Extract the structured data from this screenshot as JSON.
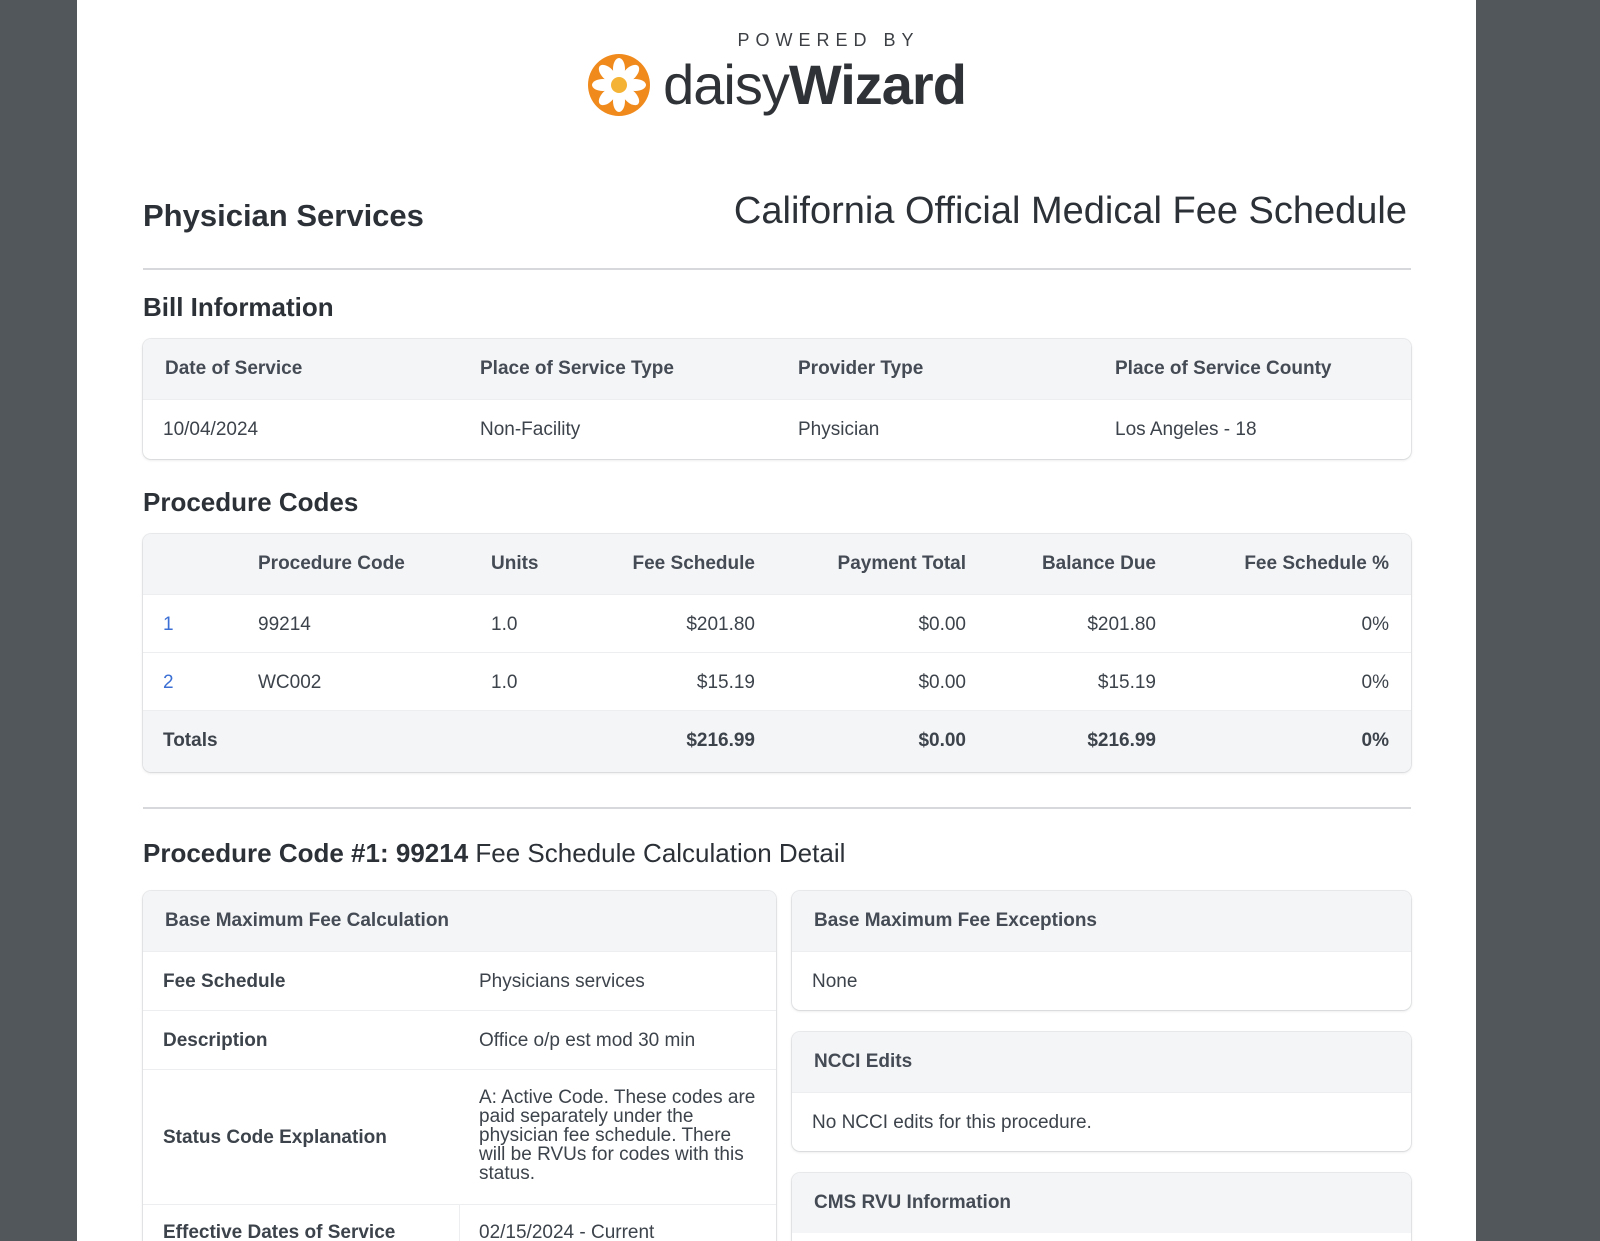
{
  "logo": {
    "powered_by": "POWERED BY",
    "brand_light": "daisy",
    "brand_bold": "Wizard",
    "icon": "daisy-flower-icon",
    "accent": "#f08a1c"
  },
  "header": {
    "title": "Physician Services",
    "subtitle": "California Official Medical Fee Schedule"
  },
  "bill_info": {
    "section_title": "Bill Information",
    "columns": [
      "Date of Service",
      "Place of Service Type",
      "Provider Type",
      "Place of Service County"
    ],
    "values": [
      "10/04/2024",
      "Non-Facility",
      "Physician",
      "Los Angeles - 18"
    ]
  },
  "procedure_codes": {
    "section_title": "Procedure Codes",
    "columns": [
      "",
      "Procedure Code",
      "Units",
      "Fee Schedule",
      "Payment Total",
      "Balance Due",
      "Fee Schedule %"
    ],
    "rows": [
      {
        "index": "1",
        "code": "99214",
        "units": "1.0",
        "fee": "$201.80",
        "payment": "$0.00",
        "balance": "$201.80",
        "pct": "0%"
      },
      {
        "index": "2",
        "code": "WC002",
        "units": "1.0",
        "fee": "$15.19",
        "payment": "$0.00",
        "balance": "$15.19",
        "pct": "0%"
      }
    ],
    "totals": {
      "label": "Totals",
      "fee": "$216.99",
      "payment": "$0.00",
      "balance": "$216.99",
      "pct": "0%"
    }
  },
  "detail": {
    "title_bold": "Procedure Code #1: 99214",
    "title_rest": " Fee Schedule Calculation Detail",
    "base_calc": {
      "heading": "Base Maximum Fee Calculation",
      "rows": [
        {
          "key": "Fee Schedule",
          "value": "Physicians services"
        },
        {
          "key": "Description",
          "value": "Office o/p est mod 30 min"
        },
        {
          "key": "Status Code Explanation",
          "value": "A: Active Code. These codes are paid separately under the physician fee schedule. There will be RVUs for codes with this status."
        },
        {
          "key": "Effective Dates of Service",
          "value": "02/15/2024 - Current"
        }
      ]
    },
    "exceptions": {
      "heading": "Base Maximum Fee Exceptions",
      "value": "None"
    },
    "ncci": {
      "heading": "NCCI Edits",
      "value": "No NCCI edits for this procedure."
    },
    "cms_rvu": {
      "heading": "CMS RVU Information"
    }
  }
}
